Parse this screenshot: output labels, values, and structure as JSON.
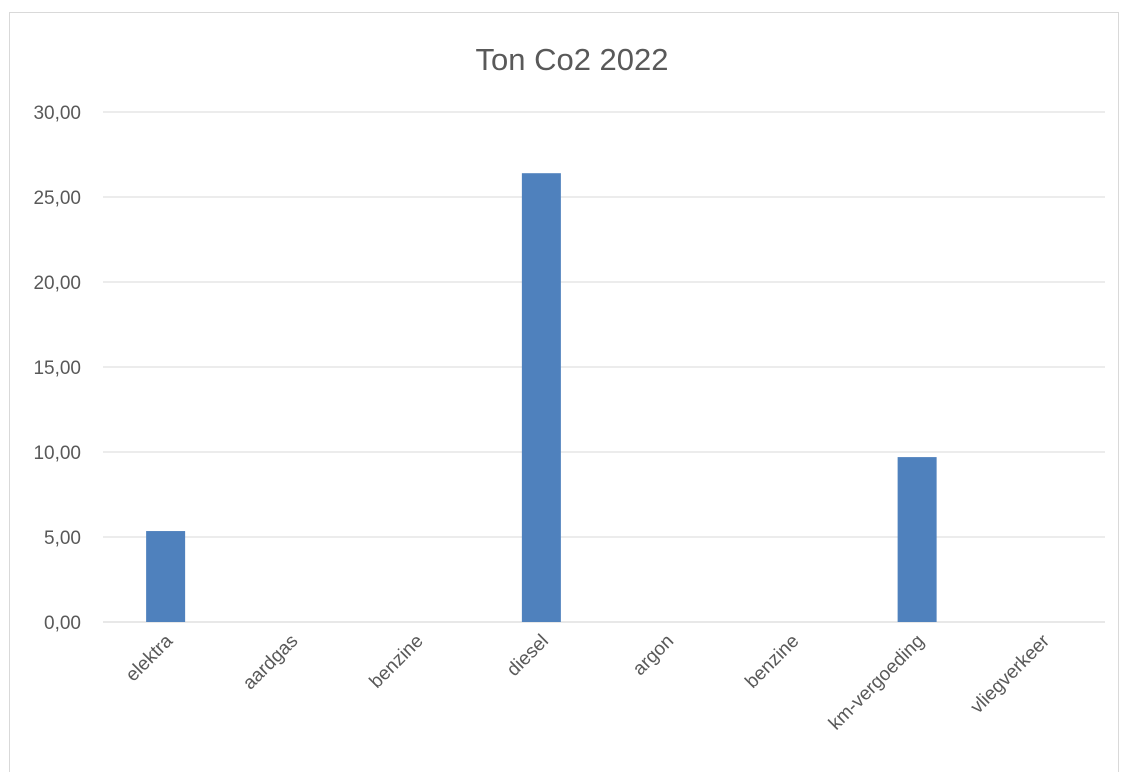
{
  "chart_data": {
    "type": "bar",
    "title": "Ton Co2 2022",
    "categories": [
      "elektra",
      "aardgas",
      "benzine",
      "diesel",
      "argon",
      "benzine",
      "km-vergoeding",
      "vliegverkeer"
    ],
    "values": [
      5.35,
      0,
      0,
      26.4,
      0,
      0,
      9.7,
      0
    ],
    "ylim": [
      0,
      30
    ],
    "yticks": [
      "0,00",
      "5,00",
      "10,00",
      "15,00",
      "20,00",
      "25,00",
      "30,00"
    ],
    "grid": true,
    "legend": "none",
    "colors": {
      "bar": "#4f81bd",
      "grid": "#d9d9d9",
      "text": "#595959"
    }
  }
}
